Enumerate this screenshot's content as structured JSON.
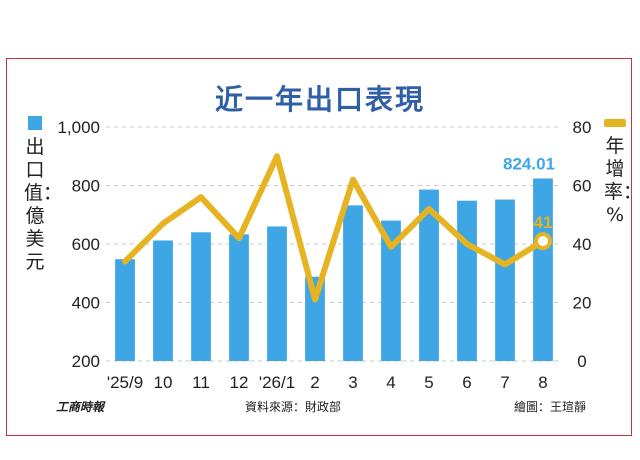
{
  "title": "近一年出口表現",
  "legend": {
    "bar_label": "出口值：億美元",
    "line_label": "年增率：%"
  },
  "footer": {
    "logo": "工商時報",
    "source": "資料來源：財政部",
    "credit": "繪圖：王瑄靜"
  },
  "colors": {
    "bar": "#3ea6e4",
    "line": "#e6b422",
    "title": "#2f5fa7",
    "frame": "#c8323c"
  },
  "chart_data": {
    "type": "bar",
    "categories": [
      "'25/9",
      "10",
      "11",
      "12",
      "'26/1",
      "2",
      "3",
      "4",
      "5",
      "6",
      "7",
      "8"
    ],
    "series": [
      {
        "type": "bar",
        "axis": "left",
        "values": [
          548,
          612,
          640,
          633,
          660,
          488,
          732,
          680,
          786,
          748,
          752,
          824.01
        ]
      },
      {
        "type": "line",
        "axis": "right",
        "values": [
          34,
          47,
          56,
          42,
          70,
          21,
          62,
          39,
          52,
          40,
          33,
          41
        ]
      }
    ],
    "y_left": {
      "min": 200,
      "max": 1000,
      "ticks": [
        "200",
        "400",
        "600",
        "800",
        "1,000"
      ]
    },
    "y_right": {
      "min": 0,
      "max": 80,
      "ticks": [
        "0",
        "20",
        "40",
        "60",
        "80"
      ]
    },
    "annotations": {
      "last_bar_label": "824.01",
      "last_line_label": "41"
    },
    "grid": true
  }
}
